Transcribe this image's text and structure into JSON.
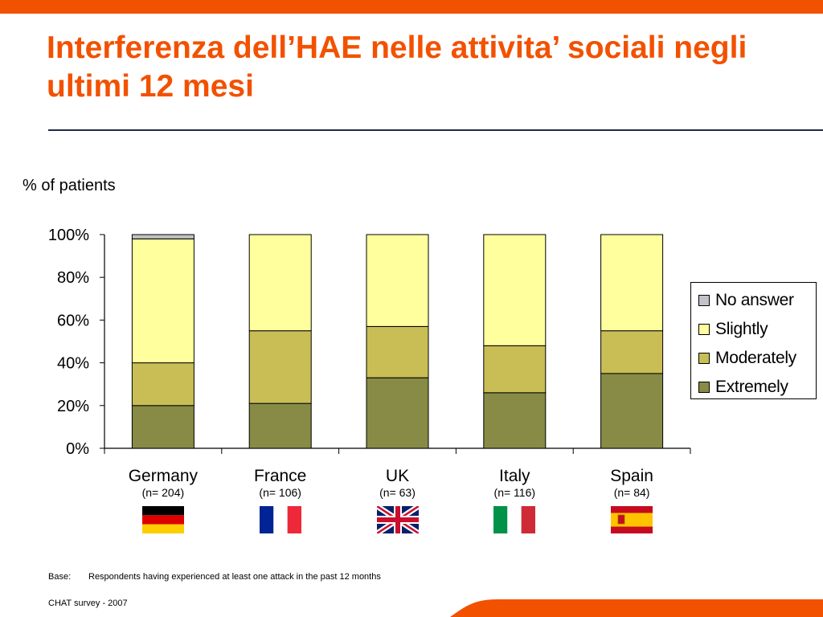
{
  "slide": {
    "title": "Interferenza dell’HAE nelle attivita’ sociali negli ultimi 12 mesi",
    "ylabel": "% of patients",
    "footnote_label": "Base:",
    "footnote_text": "Respondents having experienced at least one attack in the past 12 months",
    "source": "CHAT survey  -  2007",
    "accent_color": "#f25100"
  },
  "chart_data": {
    "type": "bar",
    "stacked": true,
    "categories": [
      "Germany",
      "France",
      "UK",
      "Italy",
      "Spain"
    ],
    "category_sublabels": [
      "(n= 204)",
      "(n= 106)",
      "(n= 63)",
      "(n= 116)",
      "(n= 84)"
    ],
    "flags": [
      "flag-germany",
      "flag-france",
      "flag-uk",
      "flag-italy",
      "flag-spain"
    ],
    "series": [
      {
        "name": "Extremely",
        "color": "#878b45",
        "values": [
          20,
          21,
          33,
          26,
          35
        ]
      },
      {
        "name": "Moderately",
        "color": "#c8be55",
        "values": [
          20,
          34,
          24,
          22,
          20
        ]
      },
      {
        "name": "Slightly",
        "color": "#ffff9e",
        "values": [
          58,
          45,
          43,
          52,
          45
        ]
      },
      {
        "name": "No answer",
        "color": "#c0c4c8",
        "values": [
          2,
          0,
          0,
          0,
          0
        ]
      }
    ],
    "legend_order": [
      "No answer",
      "Slightly",
      "Moderately",
      "Extremely"
    ],
    "ylim": [
      0,
      100
    ],
    "yticks": [
      "0%",
      "20%",
      "40%",
      "60%",
      "80%",
      "100%"
    ],
    "ytick_values": [
      0,
      20,
      40,
      60,
      80,
      100
    ],
    "grid": false,
    "legend_position": "right"
  }
}
